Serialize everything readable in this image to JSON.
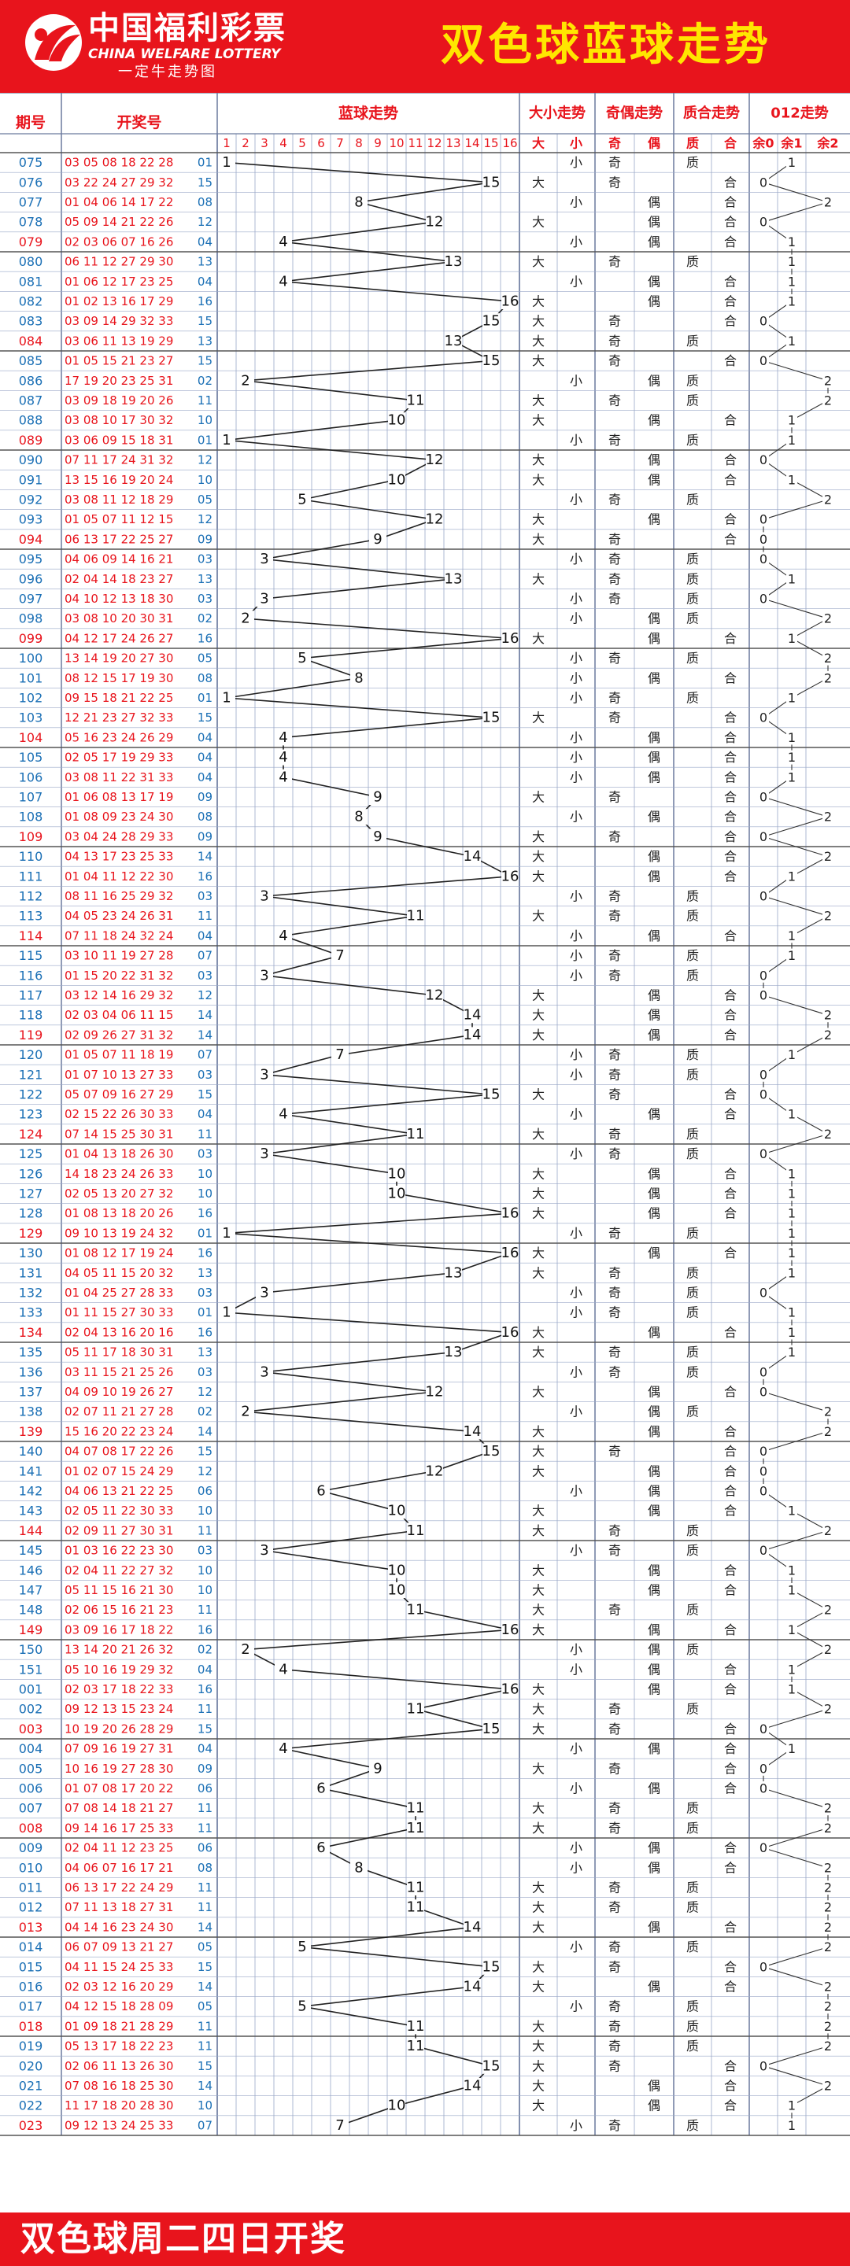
{
  "header": {
    "logo_cn": "中国福利彩票",
    "logo_en": "CHINA WELFARE LOTTERY",
    "logo_sub": "一定牛走势图",
    "title": "双色球蓝球走势"
  },
  "footer": {
    "text": "双色球周二四日开奖"
  },
  "table_headers": {
    "period": "期号",
    "numbers": "开奖号",
    "blue_trend": "蓝球走势",
    "size_trend": "大小走势",
    "parity_trend": "奇偶走势",
    "prime_trend": "质合走势",
    "mod3_trend": "012走势",
    "size_labels": [
      "大",
      "小"
    ],
    "parity_labels": [
      "奇",
      "偶"
    ],
    "prime_labels": [
      "质",
      "合"
    ],
    "mod3_labels": [
      "余0",
      "余1",
      "余2"
    ]
  },
  "colors": {
    "red": "#e8141c",
    "period_blue": "#1a6fb5",
    "grid": "#9aa8c8",
    "yellow": "#ffe600"
  },
  "chart_data": {
    "type": "line",
    "title": "双色球蓝球走势",
    "x_label": "期号",
    "y_ticks": [
      1,
      2,
      3,
      4,
      5,
      6,
      7,
      8,
      9,
      10,
      11,
      12,
      13,
      14,
      15,
      16
    ],
    "rows": [
      {
        "period": "075",
        "reds": "03 05 08 18 22 28",
        "blue": "01",
        "size": "小",
        "parity": "奇",
        "prime": "质",
        "mod": 1
      },
      {
        "period": "076",
        "reds": "03 22 24 27 29 32",
        "blue": "15",
        "size": "大",
        "parity": "奇",
        "prime": "合",
        "mod": 0
      },
      {
        "period": "077",
        "reds": "01 04 06 14 17 22",
        "blue": "08",
        "size": "小",
        "parity": "偶",
        "prime": "合",
        "mod": 2
      },
      {
        "period": "078",
        "reds": "05 09 14 21 22 26",
        "blue": "12",
        "size": "大",
        "parity": "偶",
        "prime": "合",
        "mod": 0
      },
      {
        "period": "079",
        "reds": "02 03 06 07 16 26",
        "blue": "04",
        "size": "小",
        "parity": "偶",
        "prime": "合",
        "mod": 1
      },
      {
        "period": "080",
        "reds": "06 11 12 27 29 30",
        "blue": "13",
        "size": "大",
        "parity": "奇",
        "prime": "质",
        "mod": 1
      },
      {
        "period": "081",
        "reds": "01 06 12 17 23 25",
        "blue": "04",
        "size": "小",
        "parity": "偶",
        "prime": "合",
        "mod": 1
      },
      {
        "period": "082",
        "reds": "01 02 13 16 17 29",
        "blue": "16",
        "size": "大",
        "parity": "偶",
        "prime": "合",
        "mod": 1
      },
      {
        "period": "083",
        "reds": "03 09 14 29 32 33",
        "blue": "15",
        "size": "大",
        "parity": "奇",
        "prime": "合",
        "mod": 0
      },
      {
        "period": "084",
        "reds": "03 06 11 13 19 29",
        "blue": "13",
        "size": "大",
        "parity": "奇",
        "prime": "质",
        "mod": 1
      },
      {
        "period": "085",
        "reds": "01 05 15 21 23 27",
        "blue": "15",
        "size": "大",
        "parity": "奇",
        "prime": "合",
        "mod": 0
      },
      {
        "period": "086",
        "reds": "17 19 20 23 25 31",
        "blue": "02",
        "size": "小",
        "parity": "偶",
        "prime": "质",
        "mod": 2
      },
      {
        "period": "087",
        "reds": "03 09 18 19 20 26",
        "blue": "11",
        "size": "大",
        "parity": "奇",
        "prime": "质",
        "mod": 2
      },
      {
        "period": "088",
        "reds": "03 08 10 17 30 32",
        "blue": "10",
        "size": "大",
        "parity": "偶",
        "prime": "合",
        "mod": 1
      },
      {
        "period": "089",
        "reds": "03 06 09 15 18 31",
        "blue": "01",
        "size": "小",
        "parity": "奇",
        "prime": "质",
        "mod": 1
      },
      {
        "period": "090",
        "reds": "07 11 17 24 31 32",
        "blue": "12",
        "size": "大",
        "parity": "偶",
        "prime": "合",
        "mod": 0
      },
      {
        "period": "091",
        "reds": "13 15 16 19 20 24",
        "blue": "10",
        "size": "大",
        "parity": "偶",
        "prime": "合",
        "mod": 1
      },
      {
        "period": "092",
        "reds": "03 08 11 12 18 29",
        "blue": "05",
        "size": "小",
        "parity": "奇",
        "prime": "质",
        "mod": 2
      },
      {
        "period": "093",
        "reds": "01 05 07 11 12 15",
        "blue": "12",
        "size": "大",
        "parity": "偶",
        "prime": "合",
        "mod": 0
      },
      {
        "period": "094",
        "reds": "06 13 17 22 25 27",
        "blue": "09",
        "size": "大",
        "parity": "奇",
        "prime": "合",
        "mod": 0
      },
      {
        "period": "095",
        "reds": "04 06 09 14 16 21",
        "blue": "03",
        "size": "小",
        "parity": "奇",
        "prime": "质",
        "mod": 0
      },
      {
        "period": "096",
        "reds": "02 04 14 18 23 27",
        "blue": "13",
        "size": "大",
        "parity": "奇",
        "prime": "质",
        "mod": 1
      },
      {
        "period": "097",
        "reds": "04 10 12 13 18 30",
        "blue": "03",
        "size": "小",
        "parity": "奇",
        "prime": "质",
        "mod": 0
      },
      {
        "period": "098",
        "reds": "03 08 10 20 30 31",
        "blue": "02",
        "size": "小",
        "parity": "偶",
        "prime": "质",
        "mod": 2
      },
      {
        "period": "099",
        "reds": "04 12 17 24 26 27",
        "blue": "16",
        "size": "大",
        "parity": "偶",
        "prime": "合",
        "mod": 1
      },
      {
        "period": "100",
        "reds": "13 14 19 20 27 30",
        "blue": "05",
        "size": "小",
        "parity": "奇",
        "prime": "质",
        "mod": 2
      },
      {
        "period": "101",
        "reds": "08 12 15 17 19 30",
        "blue": "08",
        "size": "小",
        "parity": "偶",
        "prime": "合",
        "mod": 2
      },
      {
        "period": "102",
        "reds": "09 15 18 21 22 25",
        "blue": "01",
        "size": "小",
        "parity": "奇",
        "prime": "质",
        "mod": 1
      },
      {
        "period": "103",
        "reds": "12 21 23 27 32 33",
        "blue": "15",
        "size": "大",
        "parity": "奇",
        "prime": "合",
        "mod": 0
      },
      {
        "period": "104",
        "reds": "05 16 23 24 26 29",
        "blue": "04",
        "size": "小",
        "parity": "偶",
        "prime": "合",
        "mod": 1
      },
      {
        "period": "105",
        "reds": "02 05 17 19 29 33",
        "blue": "04",
        "size": "小",
        "parity": "偶",
        "prime": "合",
        "mod": 1
      },
      {
        "period": "106",
        "reds": "03 08 11 22 31 33",
        "blue": "04",
        "size": "小",
        "parity": "偶",
        "prime": "合",
        "mod": 1
      },
      {
        "period": "107",
        "reds": "01 06 08 13 17 19",
        "blue": "09",
        "size": "大",
        "parity": "奇",
        "prime": "合",
        "mod": 0
      },
      {
        "period": "108",
        "reds": "01 08 09 23 24 30",
        "blue": "08",
        "size": "小",
        "parity": "偶",
        "prime": "合",
        "mod": 2
      },
      {
        "period": "109",
        "reds": "03 04 24 28 29 33",
        "blue": "09",
        "size": "大",
        "parity": "奇",
        "prime": "合",
        "mod": 0
      },
      {
        "period": "110",
        "reds": "04 13 17 23 25 33",
        "blue": "14",
        "size": "大",
        "parity": "偶",
        "prime": "合",
        "mod": 2
      },
      {
        "period": "111",
        "reds": "01 04 11 12 22 30",
        "blue": "16",
        "size": "大",
        "parity": "偶",
        "prime": "合",
        "mod": 1
      },
      {
        "period": "112",
        "reds": "08 11 16 25 29 32",
        "blue": "03",
        "size": "小",
        "parity": "奇",
        "prime": "质",
        "mod": 0
      },
      {
        "period": "113",
        "reds": "04 05 23 24 26 31",
        "blue": "11",
        "size": "大",
        "parity": "奇",
        "prime": "质",
        "mod": 2
      },
      {
        "period": "114",
        "reds": "07 11 18 24 32 24",
        "blue": "04",
        "size": "小",
        "parity": "偶",
        "prime": "合",
        "mod": 1
      },
      {
        "period": "115",
        "reds": "03 10 11 19 27 28",
        "blue": "07",
        "size": "小",
        "parity": "奇",
        "prime": "质",
        "mod": 1
      },
      {
        "period": "116",
        "reds": "01 15 20 22 31 32",
        "blue": "03",
        "size": "小",
        "parity": "奇",
        "prime": "质",
        "mod": 0
      },
      {
        "period": "117",
        "reds": "03 12 14 16 29 32",
        "blue": "12",
        "size": "大",
        "parity": "偶",
        "prime": "合",
        "mod": 0
      },
      {
        "period": "118",
        "reds": "02 03 04 06 11 15",
        "blue": "14",
        "size": "大",
        "parity": "偶",
        "prime": "合",
        "mod": 2
      },
      {
        "period": "119",
        "reds": "02 09 26 27 31 32",
        "blue": "14",
        "size": "大",
        "parity": "偶",
        "prime": "合",
        "mod": 2
      },
      {
        "period": "120",
        "reds": "01 05 07 11 18 19",
        "blue": "07",
        "size": "小",
        "parity": "奇",
        "prime": "质",
        "mod": 1
      },
      {
        "period": "121",
        "reds": "01 07 10 13 27 33",
        "blue": "03",
        "size": "小",
        "parity": "奇",
        "prime": "质",
        "mod": 0
      },
      {
        "period": "122",
        "reds": "05 07 09 16 27 29",
        "blue": "15",
        "size": "大",
        "parity": "奇",
        "prime": "合",
        "mod": 0
      },
      {
        "period": "123",
        "reds": "02 15 22 26 30 33",
        "blue": "04",
        "size": "小",
        "parity": "偶",
        "prime": "合",
        "mod": 1
      },
      {
        "period": "124",
        "reds": "07 14 15 25 30 31",
        "blue": "11",
        "size": "大",
        "parity": "奇",
        "prime": "质",
        "mod": 2
      },
      {
        "period": "125",
        "reds": "01 04 13 18 26 30",
        "blue": "03",
        "size": "小",
        "parity": "奇",
        "prime": "质",
        "mod": 0
      },
      {
        "period": "126",
        "reds": "14 18 23 24 26 33",
        "blue": "10",
        "size": "大",
        "parity": "偶",
        "prime": "合",
        "mod": 1
      },
      {
        "period": "127",
        "reds": "02 05 13 20 27 32",
        "blue": "10",
        "size": "大",
        "parity": "偶",
        "prime": "合",
        "mod": 1
      },
      {
        "period": "128",
        "reds": "01 08 13 18 20 26",
        "blue": "16",
        "size": "大",
        "parity": "偶",
        "prime": "合",
        "mod": 1
      },
      {
        "period": "129",
        "reds": "09 10 13 19 24 32",
        "blue": "01",
        "size": "小",
        "parity": "奇",
        "prime": "质",
        "mod": 1
      },
      {
        "period": "130",
        "reds": "01 08 12 17 19 24",
        "blue": "16",
        "size": "大",
        "parity": "偶",
        "prime": "合",
        "mod": 1
      },
      {
        "period": "131",
        "reds": "04 05 11 15 20 32",
        "blue": "13",
        "size": "大",
        "parity": "奇",
        "prime": "质",
        "mod": 1
      },
      {
        "period": "132",
        "reds": "01 04 25 27 28 33",
        "blue": "03",
        "size": "小",
        "parity": "奇",
        "prime": "质",
        "mod": 0
      },
      {
        "period": "133",
        "reds": "01 11 15 27 30 33",
        "blue": "01",
        "size": "小",
        "parity": "奇",
        "prime": "质",
        "mod": 1
      },
      {
        "period": "134",
        "reds": "02 04 13 16 20 16",
        "blue": "16",
        "size": "大",
        "parity": "偶",
        "prime": "合",
        "mod": 1
      },
      {
        "period": "135",
        "reds": "05 11 17 18 30 31",
        "blue": "13",
        "size": "大",
        "parity": "奇",
        "prime": "质",
        "mod": 1
      },
      {
        "period": "136",
        "reds": "03 11 15 21 25 26",
        "blue": "03",
        "size": "小",
        "parity": "奇",
        "prime": "质",
        "mod": 0
      },
      {
        "period": "137",
        "reds": "04 09 10 19 26 27",
        "blue": "12",
        "size": "大",
        "parity": "偶",
        "prime": "合",
        "mod": 0
      },
      {
        "period": "138",
        "reds": "02 07 11 21 27 28",
        "blue": "02",
        "size": "小",
        "parity": "偶",
        "prime": "质",
        "mod": 2
      },
      {
        "period": "139",
        "reds": "15 16 20 22 23 24",
        "blue": "14",
        "size": "大",
        "parity": "偶",
        "prime": "合",
        "mod": 2
      },
      {
        "period": "140",
        "reds": "04 07 08 17 22 26",
        "blue": "15",
        "size": "大",
        "parity": "奇",
        "prime": "合",
        "mod": 0
      },
      {
        "period": "141",
        "reds": "01 02 07 15 24 29",
        "blue": "12",
        "size": "大",
        "parity": "偶",
        "prime": "合",
        "mod": 0
      },
      {
        "period": "142",
        "reds": "04 06 13 21 22 25",
        "blue": "06",
        "size": "小",
        "parity": "偶",
        "prime": "合",
        "mod": 0
      },
      {
        "period": "143",
        "reds": "02 05 11 22 30 33",
        "blue": "10",
        "size": "大",
        "parity": "偶",
        "prime": "合",
        "mod": 1
      },
      {
        "period": "144",
        "reds": "02 09 11 27 30 31",
        "blue": "11",
        "size": "大",
        "parity": "奇",
        "prime": "质",
        "mod": 2
      },
      {
        "period": "145",
        "reds": "01 03 16 22 23 30",
        "blue": "03",
        "size": "小",
        "parity": "奇",
        "prime": "质",
        "mod": 0
      },
      {
        "period": "146",
        "reds": "02 04 11 22 27 32",
        "blue": "10",
        "size": "大",
        "parity": "偶",
        "prime": "合",
        "mod": 1
      },
      {
        "period": "147",
        "reds": "05 11 15 16 21 30",
        "blue": "10",
        "size": "大",
        "parity": "偶",
        "prime": "合",
        "mod": 1
      },
      {
        "period": "148",
        "reds": "02 06 15 16 21 23",
        "blue": "11",
        "size": "大",
        "parity": "奇",
        "prime": "质",
        "mod": 2
      },
      {
        "period": "149",
        "reds": "03 09 16 17 18 22",
        "blue": "16",
        "size": "大",
        "parity": "偶",
        "prime": "合",
        "mod": 1
      },
      {
        "period": "150",
        "reds": "13 14 20 21 26 32",
        "blue": "02",
        "size": "小",
        "parity": "偶",
        "prime": "质",
        "mod": 2
      },
      {
        "period": "151",
        "reds": "05 10 16 19 29 32",
        "blue": "04",
        "size": "小",
        "parity": "偶",
        "prime": "合",
        "mod": 1
      },
      {
        "period": "001",
        "reds": "02 03 17 18 22 33",
        "blue": "16",
        "size": "大",
        "parity": "偶",
        "prime": "合",
        "mod": 1
      },
      {
        "period": "002",
        "reds": "09 12 13 15 23 24",
        "blue": "11",
        "size": "大",
        "parity": "奇",
        "prime": "质",
        "mod": 2
      },
      {
        "period": "003",
        "reds": "10 19 20 26 28 29",
        "blue": "15",
        "size": "大",
        "parity": "奇",
        "prime": "合",
        "mod": 0
      },
      {
        "period": "004",
        "reds": "07 09 16 19 27 31",
        "blue": "04",
        "size": "小",
        "parity": "偶",
        "prime": "合",
        "mod": 1
      },
      {
        "period": "005",
        "reds": "10 16 19 27 28 30",
        "blue": "09",
        "size": "大",
        "parity": "奇",
        "prime": "合",
        "mod": 0
      },
      {
        "period": "006",
        "reds": "01 07 08 17 20 22",
        "blue": "06",
        "size": "小",
        "parity": "偶",
        "prime": "合",
        "mod": 0
      },
      {
        "period": "007",
        "reds": "07 08 14 18 21 27",
        "blue": "11",
        "size": "大",
        "parity": "奇",
        "prime": "质",
        "mod": 2
      },
      {
        "period": "008",
        "reds": "09 14 16 17 25 33",
        "blue": "11",
        "size": "大",
        "parity": "奇",
        "prime": "质",
        "mod": 2
      },
      {
        "period": "009",
        "reds": "02 04 11 12 23 25",
        "blue": "06",
        "size": "小",
        "parity": "偶",
        "prime": "合",
        "mod": 0
      },
      {
        "period": "010",
        "reds": "04 06 07 16 17 21",
        "blue": "08",
        "size": "小",
        "parity": "偶",
        "prime": "合",
        "mod": 2
      },
      {
        "period": "011",
        "reds": "06 13 17 22 24 29",
        "blue": "11",
        "size": "大",
        "parity": "奇",
        "prime": "质",
        "mod": 2
      },
      {
        "period": "012",
        "reds": "07 11 13 18 27 31",
        "blue": "11",
        "size": "大",
        "parity": "奇",
        "prime": "质",
        "mod": 2
      },
      {
        "period": "013",
        "reds": "04 14 16 23 24 30",
        "blue": "14",
        "size": "大",
        "parity": "偶",
        "prime": "合",
        "mod": 2
      },
      {
        "period": "014",
        "reds": "06 07 09 13 21 27",
        "blue": "05",
        "size": "小",
        "parity": "奇",
        "prime": "质",
        "mod": 2
      },
      {
        "period": "015",
        "reds": "04 11 15 24 25 33",
        "blue": "15",
        "size": "大",
        "parity": "奇",
        "prime": "合",
        "mod": 0
      },
      {
        "period": "016",
        "reds": "02 03 12 16 20 29",
        "blue": "14",
        "size": "大",
        "parity": "偶",
        "prime": "合",
        "mod": 2
      },
      {
        "period": "017",
        "reds": "04 12 15 18 28 09",
        "blue": "05",
        "size": "小",
        "parity": "奇",
        "prime": "质",
        "mod": 2
      },
      {
        "period": "018",
        "reds": "01 09 18 21 28 29",
        "blue": "11",
        "size": "大",
        "parity": "奇",
        "prime": "质",
        "mod": 2
      },
      {
        "period": "019",
        "reds": "05 13 17 18 22 23",
        "blue": "11",
        "size": "大",
        "parity": "奇",
        "prime": "质",
        "mod": 2
      },
      {
        "period": "020",
        "reds": "02 06 11 13 26 30",
        "blue": "15",
        "size": "大",
        "parity": "奇",
        "prime": "合",
        "mod": 0
      },
      {
        "period": "021",
        "reds": "07 08 16 18 25 30",
        "blue": "14",
        "size": "大",
        "parity": "偶",
        "prime": "合",
        "mod": 2
      },
      {
        "period": "022",
        "reds": "11 17 18 20 28 30",
        "blue": "10",
        "size": "大",
        "parity": "偶",
        "prime": "合",
        "mod": 1
      },
      {
        "period": "023",
        "reds": "09 12 13 24 25 33",
        "blue": "07",
        "size": "小",
        "parity": "奇",
        "prime": "质",
        "mod": 1
      }
    ]
  }
}
